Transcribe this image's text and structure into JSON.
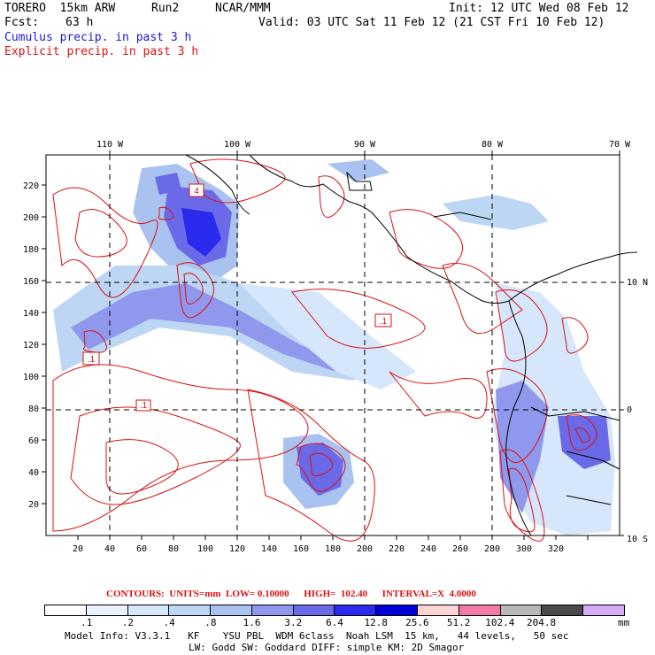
{
  "header": {
    "model": "TORERO  15km ARW",
    "run": "Run2",
    "org": "NCAR/MMM",
    "init": "Init: 12 UTC Wed 08 Feb 12",
    "fcst_label": "Fcst:",
    "fcst_value": "63 h",
    "valid": "Valid: 03 UTC Sat 11 Feb 12 (21 CST Fri 10 Feb 12)",
    "cumulus": "Cumulus precip. in past 3 h",
    "explicit": "Explicit precip. in past 3 h"
  },
  "axes": {
    "top_lon": [
      "110 W",
      "100 W",
      "90 W",
      "80 W",
      "70 W"
    ],
    "bottom": [
      "20",
      "40",
      "60",
      "80",
      "100",
      "120",
      "140",
      "160",
      "180",
      "200",
      "220",
      "240",
      "260",
      "280",
      "300",
      "320"
    ],
    "left": [
      "20",
      "40",
      "60",
      "80",
      "100",
      "120",
      "140",
      "160",
      "180",
      "200",
      "220"
    ],
    "right_lat": [
      "10 N",
      "0",
      "10 S"
    ]
  },
  "contour_labels": [
    ".1",
    ".1",
    ".1",
    "4"
  ],
  "contour_info": {
    "label": "CONTOURS:  UNITS=mm  LOW= 0.10000",
    "high": "HIGH=  102.40",
    "interval": "INTERVAL=X  4.0000"
  },
  "colorbar": {
    "colors": [
      "#ffffff",
      "#ebf1ff",
      "#d6e6fb",
      "#bcd6f4",
      "#a9c2f0",
      "#8f98ec",
      "#6a6ae8",
      "#2a2aec",
      "#0000d8",
      "#fbd3d3",
      "#f27aa8",
      "#b8b8b8",
      "#4a4a4a",
      "#d6aaf7"
    ],
    "labels": [
      ".1",
      ".2",
      ".4",
      ".8",
      "1.6",
      "3.2",
      "6.4",
      "12.8",
      "25.6",
      "51.2",
      "102.4",
      "204.8"
    ],
    "units": "mm"
  },
  "footer": {
    "line1": "Model Info: V3.3.1   KF    YSU PBL  WDM 6class  Noah LSM  15 km,   44 levels,   50 sec",
    "line2": "LW: Godd SW: Goddard DIFF: simple KM: 2D Smagor"
  }
}
